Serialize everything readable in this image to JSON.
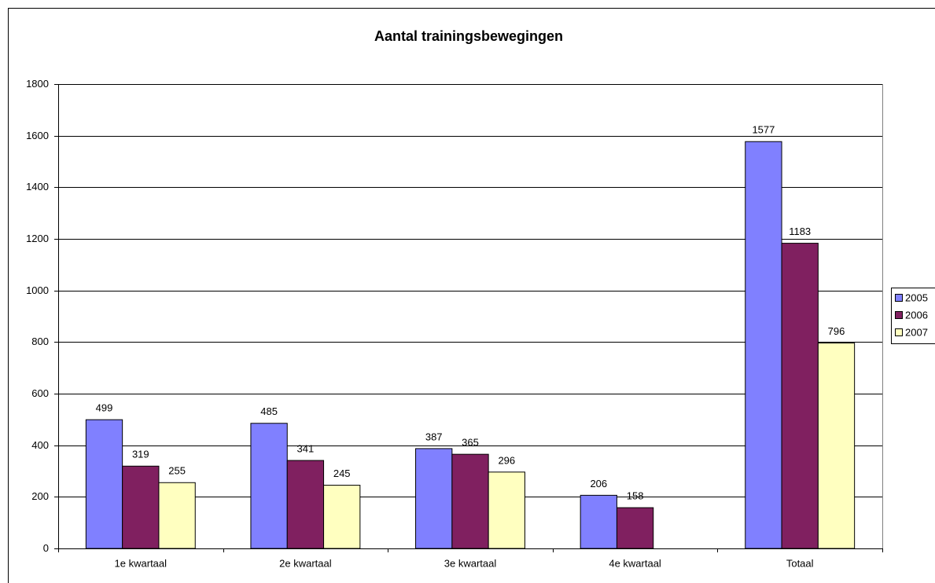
{
  "chart_data": {
    "type": "bar",
    "title": "Aantal trainingsbewegingen",
    "categories": [
      "1e kwartaal",
      "2e kwartaal",
      "3e kwartaal",
      "4e kwartaal",
      "Totaal"
    ],
    "series": [
      {
        "name": "2005",
        "color": "#8080ff",
        "values": [
          499,
          485,
          387,
          206,
          1577
        ]
      },
      {
        "name": "2006",
        "color": "#802060",
        "values": [
          319,
          341,
          365,
          158,
          1183
        ]
      },
      {
        "name": "2007",
        "color": "#ffffc0",
        "values": [
          255,
          245,
          296,
          null,
          796
        ]
      }
    ],
    "ylim": [
      0,
      1800
    ],
    "yticks": [
      0,
      200,
      400,
      600,
      800,
      1000,
      1200,
      1400,
      1600,
      1800
    ],
    "grid": true,
    "legend": "right"
  }
}
